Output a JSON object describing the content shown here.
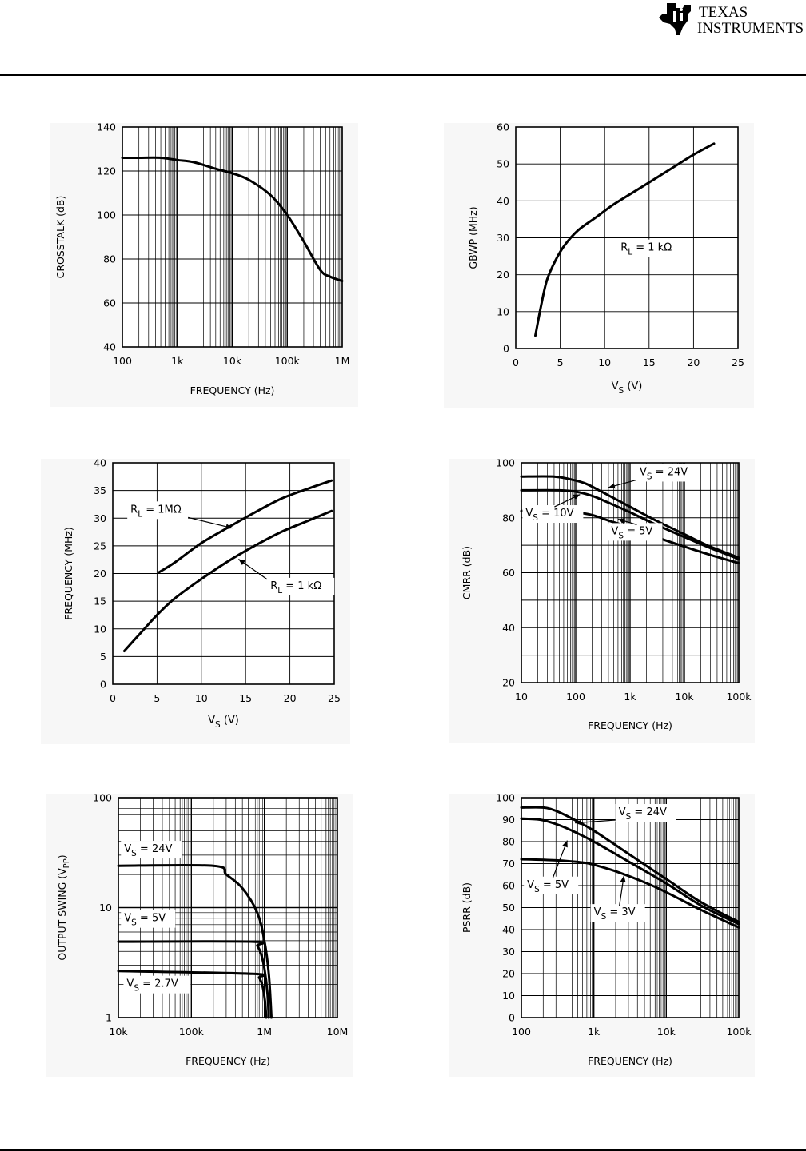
{
  "header": {
    "logo_line1": "TEXAS",
    "logo_line2": "INSTRUMENTS"
  },
  "chart_data": [
    {
      "type": "line",
      "id": "crosstalk",
      "ylabel": "CROSSTALK (dB)",
      "xlabel": "FREQUENCY (Hz)",
      "xscale": "log",
      "xlim": [
        100,
        1000000
      ],
      "ylim": [
        40,
        140
      ],
      "xticks": [
        100,
        1000,
        10000,
        100000,
        1000000
      ],
      "xtick_labels": [
        "100",
        "1k",
        "10k",
        "100k",
        "1M"
      ],
      "yticks": [
        40,
        60,
        80,
        100,
        120,
        140
      ],
      "ytick_labels": [
        "40",
        "60",
        "80",
        "100",
        "120",
        "140"
      ],
      "series": [
        {
          "name": "Crosstalk",
          "x": [
            100,
            200,
            500,
            1000,
            2000,
            5000,
            10000,
            20000,
            50000,
            100000,
            200000,
            400000,
            600000,
            1000000
          ],
          "y": [
            126,
            126,
            126,
            125,
            124,
            121,
            119,
            116,
            109,
            100,
            88,
            75,
            72,
            70
          ]
        }
      ],
      "annotations": []
    },
    {
      "type": "line",
      "id": "gbwp",
      "ylabel": "GBWP (MHz)",
      "xlabel_main": "V",
      "xlabel_sub": "S",
      "xlabel_unit": "(V)",
      "xscale": "linear",
      "xlim": [
        0,
        25
      ],
      "ylim": [
        0,
        60
      ],
      "xticks": [
        0,
        5,
        10,
        15,
        20,
        25
      ],
      "xtick_labels": [
        "0",
        "5",
        "10",
        "15",
        "20",
        "25"
      ],
      "yticks": [
        0,
        10,
        20,
        30,
        40,
        50,
        60
      ],
      "ytick_labels": [
        "0",
        "10",
        "20",
        "30",
        "40",
        "50",
        "60"
      ],
      "series": [
        {
          "name": "RL = 1 kΩ",
          "x": [
            2.2,
            2.8,
            3.5,
            4.5,
            5.5,
            7,
            9,
            11,
            14,
            17,
            20,
            22.3
          ],
          "y": [
            3.5,
            11,
            18.5,
            24,
            28,
            32,
            35.5,
            39,
            43.5,
            48,
            52.5,
            55.5
          ]
        }
      ],
      "annotations": [
        {
          "main": "R",
          "sub": "L",
          "rest": " =  1 kΩ",
          "x": 11.8,
          "y": 26.5
        }
      ]
    },
    {
      "type": "line",
      "id": "frequency_vs_vs",
      "ylabel": "FREQUENCY (MHz)",
      "xlabel_main": "V",
      "xlabel_sub": "S",
      "xlabel_unit": "(V)",
      "xscale": "linear",
      "xlim": [
        0,
        25
      ],
      "ylim": [
        0,
        40
      ],
      "xticks": [
        0,
        5,
        10,
        15,
        20,
        25
      ],
      "xtick_labels": [
        "0",
        "5",
        "10",
        "15",
        "20",
        "25"
      ],
      "yticks": [
        0,
        5,
        10,
        15,
        20,
        25,
        30,
        35,
        40
      ],
      "ytick_labels": [
        "0",
        "5",
        "10",
        "15",
        "20",
        "25",
        "30",
        "35",
        "40"
      ],
      "series": [
        {
          "name": "RL = 1MΩ",
          "x": [
            5.2,
            7,
            10,
            13,
            16,
            19,
            22,
            24.7
          ],
          "y": [
            20.2,
            22,
            25.5,
            28.3,
            31,
            33.5,
            35.3,
            36.8
          ]
        },
        {
          "name": "RL = 1 kΩ",
          "x": [
            1.3,
            3,
            5,
            7,
            10,
            13,
            16,
            19,
            22,
            24.7
          ],
          "y": [
            6,
            9,
            12.5,
            15.5,
            19,
            22.2,
            25,
            27.5,
            29.5,
            31.3
          ]
        }
      ],
      "annotations": [
        {
          "main": "R",
          "sub": "L",
          "rest": " =  1MΩ",
          "x": 2,
          "y": 31,
          "arrow_to": [
            13.5,
            28.2
          ]
        },
        {
          "main": "R",
          "sub": "L",
          "rest": " =  1 kΩ",
          "x": 17.8,
          "y": 17.2,
          "arrow_to": [
            14.2,
            22.6
          ]
        }
      ]
    },
    {
      "type": "line",
      "id": "cmrr",
      "ylabel": "CMRR (dB)",
      "xlabel": "FREQUENCY (Hz)",
      "xscale": "log",
      "xlim": [
        10,
        100000
      ],
      "ylim": [
        20,
        100
      ],
      "xticks": [
        10,
        100,
        1000,
        10000,
        100000
      ],
      "xtick_labels": [
        "10",
        "100",
        "1k",
        "10k",
        "100k"
      ],
      "yticks": [
        20,
        40,
        60,
        80,
        100
      ],
      "ytick_labels": [
        "20",
        "40",
        "60",
        "80",
        "100"
      ],
      "extra_gridlines_y": [
        30,
        50,
        70,
        90
      ],
      "series": [
        {
          "name": "VS = 24V",
          "x": [
            10,
            40,
            80,
            150,
            300,
            1000,
            3000,
            10000,
            30000,
            100000
          ],
          "y": [
            95,
            95,
            94,
            92.5,
            89.5,
            84,
            79,
            74,
            69.5,
            65.5
          ]
        },
        {
          "name": "VS = 10V",
          "x": [
            10,
            50,
            100,
            200,
            400,
            1000,
            3000,
            10000,
            30000,
            100000
          ],
          "y": [
            90,
            90,
            89.5,
            88,
            85.5,
            82,
            77.5,
            73,
            69,
            65
          ]
        },
        {
          "name": "VS = 5V",
          "x": [
            10,
            50,
            100,
            200,
            400,
            1000,
            3000,
            10000,
            30000,
            100000
          ],
          "y": [
            82.5,
            82.5,
            82,
            81,
            79,
            76.5,
            73,
            69.5,
            66.5,
            63.5
          ]
        }
      ],
      "annotations": [
        {
          "main": "V",
          "sub": "S",
          "rest": " =  24V",
          "x": 1500,
          "y": 95.5,
          "arrow_to": [
            400,
            91
          ]
        },
        {
          "main": "V",
          "sub": "S",
          "rest": " =  10V",
          "x": 12,
          "y": 80.5,
          "arrow_to": [
            120,
            88.5
          ]
        },
        {
          "main": "V",
          "sub": "S",
          "rest": " =  5V",
          "x": 450,
          "y": 74,
          "arrow_to": [
            600,
            79.5
          ]
        }
      ]
    },
    {
      "type": "line",
      "id": "output_swing",
      "ylabel": "OUTPUT SWING (V",
      "ylabel_sub": "PP",
      "ylabel_end": ")",
      "xlabel": "FREQUENCY (Hz)",
      "xscale": "log",
      "yscale": "log",
      "xlim": [
        10000,
        10000000
      ],
      "ylim": [
        1,
        100
      ],
      "xticks": [
        10000,
        100000,
        1000000,
        10000000
      ],
      "xtick_labels": [
        "10k",
        "100k",
        "1M",
        "10M"
      ],
      "yticks": [
        1,
        10,
        100
      ],
      "ytick_labels": [
        "1",
        "10",
        "100"
      ],
      "series": [
        {
          "name": "VS = 24V",
          "x": [
            10000,
            200000,
            300000,
            500000,
            800000,
            1000000,
            1150000,
            1250000
          ],
          "y": [
            24,
            24,
            20,
            15,
            9,
            5,
            2.5,
            1
          ]
        },
        {
          "name": "VS = 5V",
          "x": [
            10000,
            700000,
            800000,
            900000,
            1000000,
            1100000,
            1150000
          ],
          "y": [
            4.9,
            4.9,
            4.5,
            3.8,
            2.8,
            1.7,
            1
          ]
        },
        {
          "name": "VS = 2.7V",
          "x": [
            10000,
            700000,
            850000,
            950000,
            1020000,
            1060000
          ],
          "y": [
            2.65,
            2.5,
            2.3,
            1.9,
            1.4,
            1
          ]
        }
      ],
      "annotations": [
        {
          "main": "V",
          "sub": "S",
          "rest": " =  24V",
          "x": 12000,
          "y": 32
        },
        {
          "main": "V",
          "sub": "S",
          "rest": " =  5V",
          "x": 12000,
          "y": 7.5
        },
        {
          "main": "V",
          "sub": "S",
          "rest": " =  2.7V",
          "x": 13000,
          "y": 1.9
        }
      ]
    },
    {
      "type": "line",
      "id": "psrr",
      "ylabel": "PSRR (dB)",
      "xlabel": "FREQUENCY (Hz)",
      "xscale": "log",
      "xlim": [
        100,
        100000
      ],
      "ylim": [
        0,
        100
      ],
      "xticks": [
        100,
        1000,
        10000,
        100000
      ],
      "xtick_labels": [
        "100",
        "1k",
        "10k",
        "100k"
      ],
      "yticks": [
        0,
        10,
        20,
        30,
        40,
        50,
        60,
        70,
        80,
        90,
        100
      ],
      "ytick_labels": [
        "0",
        "10",
        "20",
        "30",
        "40",
        "50",
        "60",
        "70",
        "80",
        "90",
        "100"
      ],
      "series": [
        {
          "name": "VS = 24V",
          "x": [
            100,
            200,
            300,
            500,
            1000,
            3000,
            10000,
            30000,
            100000
          ],
          "y": [
            95.5,
            95.5,
            94,
            90.5,
            85,
            74.5,
            63,
            52.5,
            43.5
          ]
        },
        {
          "name": "VS = 5V",
          "x": [
            100,
            180,
            300,
            500,
            1000,
            3000,
            10000,
            30000,
            100000
          ],
          "y": [
            90.5,
            90,
            88,
            85,
            80,
            71,
            61,
            51,
            42.5
          ]
        },
        {
          "name": "VS = 3V",
          "x": [
            100,
            300,
            700,
            1000,
            2000,
            5000,
            10000,
            30000,
            100000
          ],
          "y": [
            72,
            71.5,
            70.5,
            69.5,
            66.5,
            61.5,
            57,
            49,
            41
          ]
        }
      ],
      "annotations": [
        {
          "main": "V",
          "sub": "S",
          "rest": " =  24V",
          "x": 2200,
          "y": 92,
          "arrow_to": [
            550,
            88.5
          ]
        },
        {
          "main": "V",
          "sub": "S",
          "rest": " =  5V",
          "x": 120,
          "y": 59,
          "arrow_to": [
            430,
            80.5
          ]
        },
        {
          "main": "V",
          "sub": "S",
          "rest": " =  3V",
          "x": 1000,
          "y": 46.5,
          "arrow_to": [
            2600,
            64.5
          ]
        }
      ]
    }
  ]
}
